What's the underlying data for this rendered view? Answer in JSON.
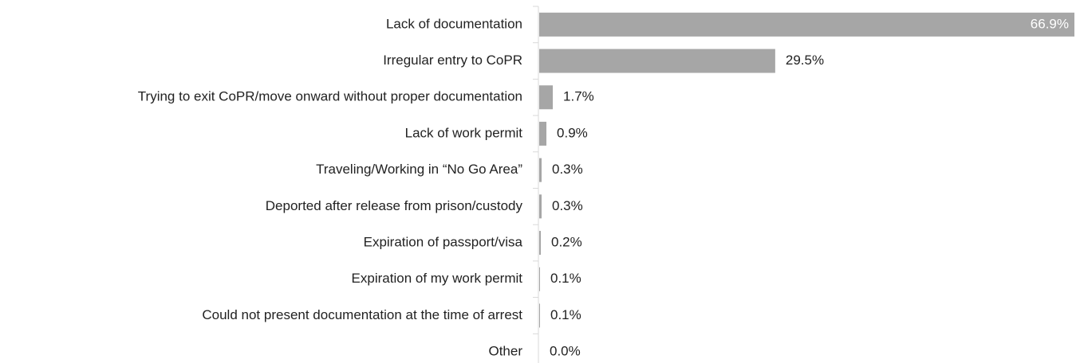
{
  "chart_data": {
    "type": "barh",
    "categories": [
      "Lack of documentation",
      "Irregular entry to CoPR",
      "Trying to exit CoPR/move onward without proper documentation",
      "Lack of work permit",
      "Traveling/Working in “No Go Area”",
      "Deported after release from prison/custody",
      "Expiration of passport/visa",
      "Expiration of my work permit",
      "Could not present documentation at the time of arrest",
      "Other"
    ],
    "values": [
      66.9,
      29.5,
      1.7,
      0.9,
      0.3,
      0.3,
      0.2,
      0.1,
      0.1,
      0.0
    ],
    "value_labels": [
      "66.9%",
      "29.5%",
      "1.7%",
      "0.9%",
      "0.3%",
      "0.3%",
      "0.2%",
      "0.1%",
      "0.1%",
      "0.0%"
    ],
    "color": "#a6a6a6",
    "xlim": [
      0,
      67
    ]
  }
}
